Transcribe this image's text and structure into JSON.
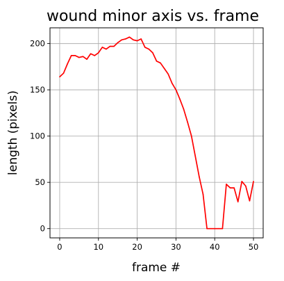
{
  "chart_data": {
    "type": "line",
    "title": "wound minor axis vs. frame",
    "xlabel": "frame #",
    "ylabel": "length (pixels)",
    "xlim": [
      -2.5,
      52.5
    ],
    "ylim": [
      -10,
      217
    ],
    "grid": true,
    "x_ticks": [
      0,
      10,
      20,
      30,
      40,
      50
    ],
    "y_ticks": [
      0,
      50,
      100,
      150,
      200
    ],
    "series": [
      {
        "color": "#ff0000",
        "x": [
          0,
          1,
          2,
          3,
          4,
          5,
          6,
          7,
          8,
          9,
          10,
          11,
          12,
          13,
          14,
          15,
          16,
          17,
          18,
          19,
          20,
          21,
          22,
          23,
          24,
          25,
          26,
          27,
          28,
          29,
          30,
          31,
          32,
          33,
          34,
          35,
          36,
          37,
          38,
          39,
          40,
          41,
          42,
          43,
          44,
          45,
          46,
          47,
          48,
          49,
          50
        ],
        "y": [
          164,
          168,
          178,
          187,
          187,
          185,
          186,
          183,
          189,
          187,
          190,
          196,
          194,
          197,
          197,
          201,
          204,
          205,
          207,
          204,
          203,
          205,
          196,
          194,
          190,
          181,
          179,
          173,
          167,
          157,
          150,
          140,
          129,
          115,
          100,
          78,
          56,
          37,
          0,
          0,
          0,
          0,
          0,
          48,
          44,
          44,
          29,
          51,
          46,
          30,
          51
        ]
      }
    ]
  }
}
